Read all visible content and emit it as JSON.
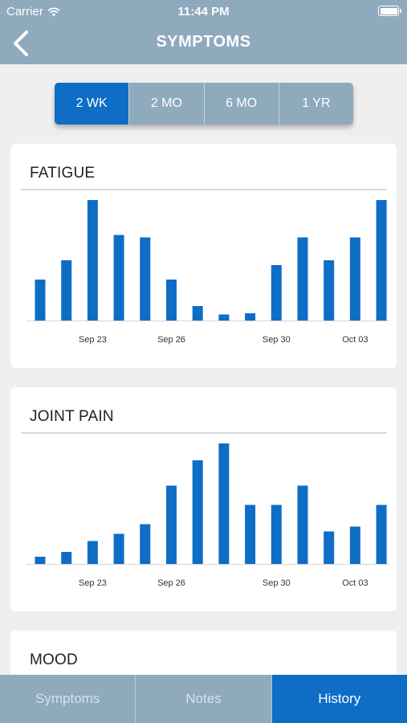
{
  "status": {
    "carrier": "Carrier",
    "time": "11:44 PM"
  },
  "nav": {
    "title": "SYMPTOMS"
  },
  "ranges": [
    {
      "label": "2 WK",
      "active": true
    },
    {
      "label": "2 MO",
      "active": false
    },
    {
      "label": "6 MO",
      "active": false
    },
    {
      "label": "1 YR",
      "active": false
    }
  ],
  "tabs": [
    {
      "label": "Symptoms",
      "active": false
    },
    {
      "label": "Notes",
      "active": false
    },
    {
      "label": "History",
      "active": true
    }
  ],
  "colors": {
    "bar": "#0e6ec6",
    "header": "#8fa9bd",
    "accent": "#0e6ec6"
  },
  "cards": [
    {
      "title": "FATIGUE"
    },
    {
      "title": "JOINT PAIN"
    },
    {
      "title": "MOOD"
    }
  ],
  "chart_data": [
    {
      "type": "bar",
      "title": "FATIGUE",
      "x": [
        "Sep 21",
        "Sep 22",
        "Sep 23",
        "Sep 24",
        "Sep 25",
        "Sep 26",
        "Sep 27",
        "Sep 28",
        "Sep 29",
        "Sep 30",
        "Oct 01",
        "Oct 02",
        "Oct 03",
        "Oct 04"
      ],
      "tick_labels": [
        "Sep 23",
        "Sep 26",
        "Sep 30",
        "Oct 03"
      ],
      "values": [
        3.4,
        5.0,
        10.0,
        7.1,
        6.9,
        3.4,
        1.2,
        0.5,
        0.6,
        4.6,
        6.9,
        5.0,
        6.9,
        10.0
      ],
      "ylim": [
        0,
        10
      ]
    },
    {
      "type": "bar",
      "title": "JOINT PAIN",
      "x": [
        "Sep 21",
        "Sep 22",
        "Sep 23",
        "Sep 24",
        "Sep 25",
        "Sep 26",
        "Sep 27",
        "Sep 28",
        "Sep 29",
        "Sep 30",
        "Oct 01",
        "Oct 02",
        "Oct 03",
        "Oct 04"
      ],
      "tick_labels": [
        "Sep 23",
        "Sep 26",
        "Sep 30",
        "Oct 03"
      ],
      "values": [
        0.6,
        1.0,
        1.9,
        2.5,
        3.3,
        6.5,
        8.6,
        10.0,
        4.9,
        4.9,
        6.5,
        2.7,
        3.1,
        4.9
      ],
      "ylim": [
        0,
        10
      ]
    }
  ]
}
